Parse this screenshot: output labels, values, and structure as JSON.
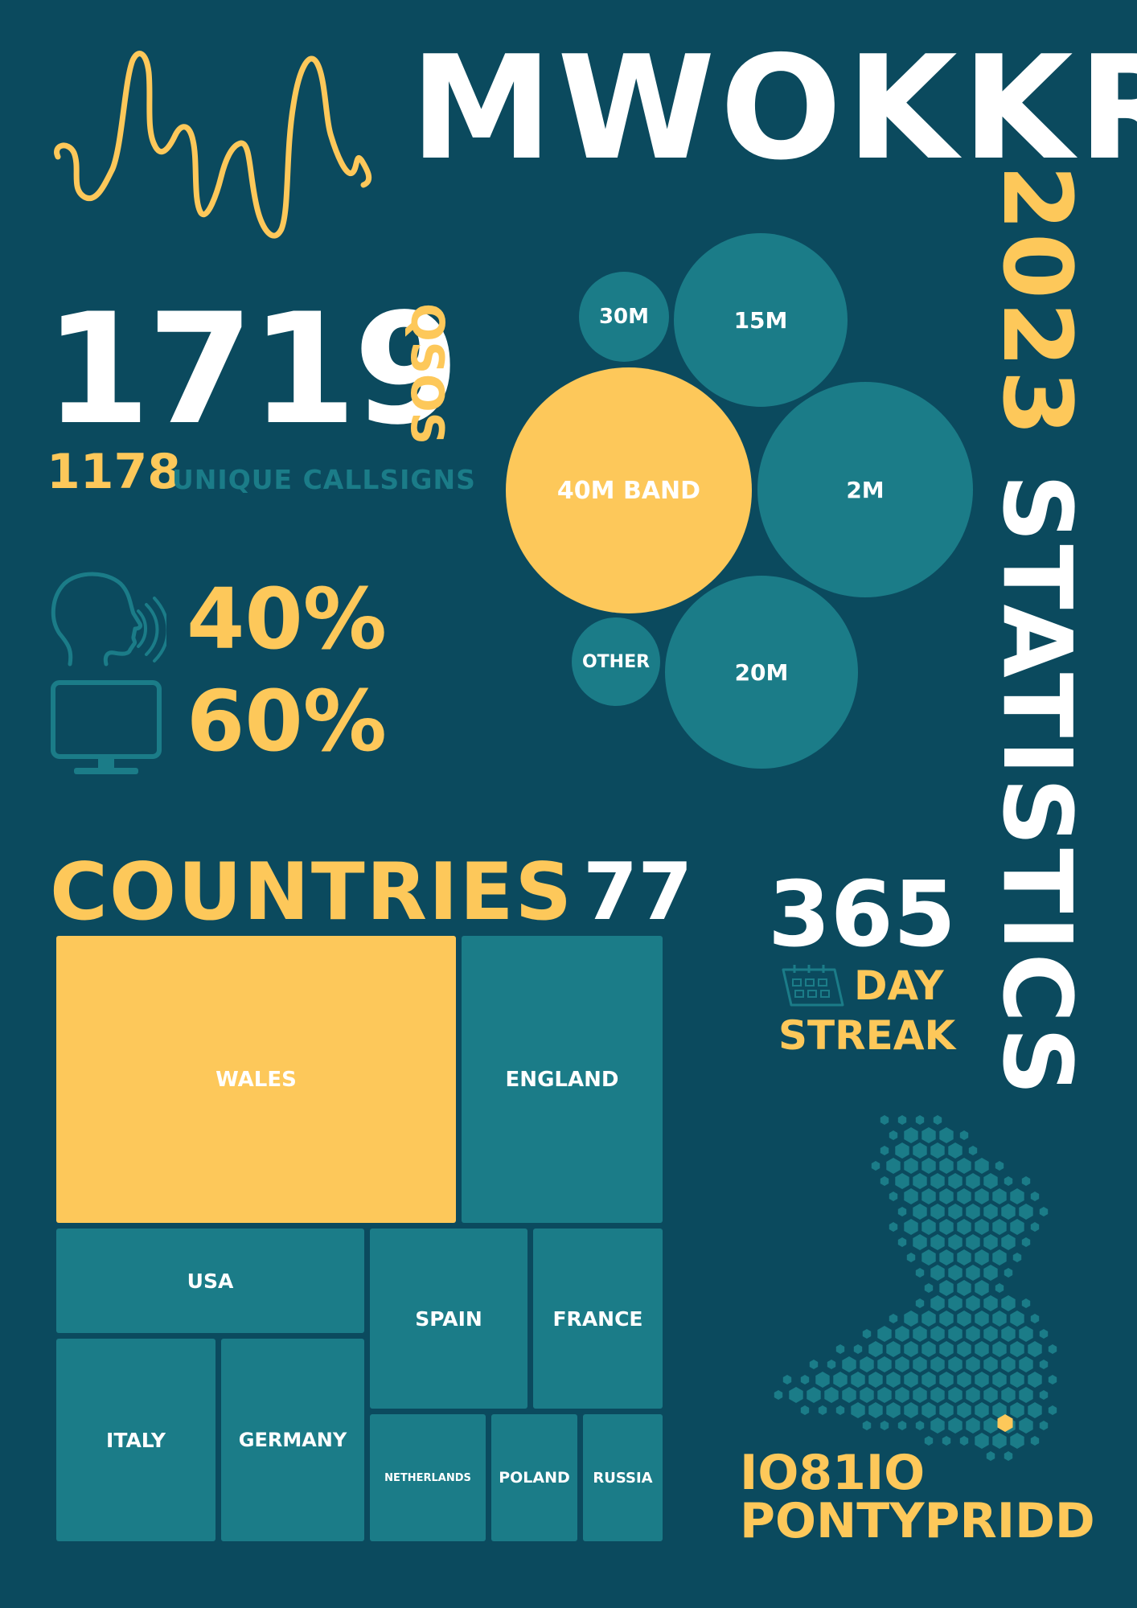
{
  "header": {
    "callsign": "MWOKKR",
    "subtitle": "2023 STATISTICS"
  },
  "qsos": {
    "total": "1719",
    "label": "QSOS",
    "unique_count": "1178",
    "unique_label": "UNIQUE CALLSIGNS"
  },
  "modes": {
    "voice_percent": "40%",
    "digital_percent": "60%",
    "voice_icon": "speaking-head-icon",
    "digital_icon": "monitor-icon"
  },
  "bands": [
    {
      "label": "30M"
    },
    {
      "label": "15M"
    },
    {
      "label": "40M BAND"
    },
    {
      "label": "2M"
    },
    {
      "label": "OTHER"
    },
    {
      "label": "20M"
    }
  ],
  "countries": {
    "label": "COUNTRIES",
    "count": "77",
    "items": [
      {
        "name": "WALES"
      },
      {
        "name": "ENGLAND"
      },
      {
        "name": "USA"
      },
      {
        "name": "SPAIN"
      },
      {
        "name": "FRANCE"
      },
      {
        "name": "ITALY"
      },
      {
        "name": "GERMANY"
      },
      {
        "name": "NETHERLANDS"
      },
      {
        "name": "POLAND"
      },
      {
        "name": "RUSSIA"
      }
    ]
  },
  "streak": {
    "number": "365",
    "day": "DAY",
    "streak": "STREAK",
    "icon": "calendar-icon"
  },
  "location": {
    "locator": "IO81IO",
    "town": "PONTYPRIDD",
    "map_icon": "wales-hex-map"
  },
  "colors": {
    "background": "#0b4a5e",
    "accent": "#fdc85a",
    "teal": "#1b7c88",
    "white": "#ffffff"
  }
}
